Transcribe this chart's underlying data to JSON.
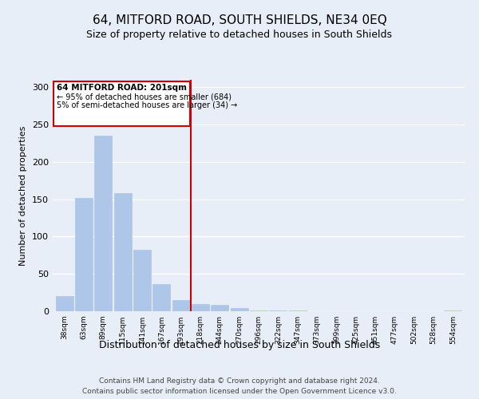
{
  "title": "64, MITFORD ROAD, SOUTH SHIELDS, NE34 0EQ",
  "subtitle": "Size of property relative to detached houses in South Shields",
  "xlabel": "Distribution of detached houses by size in South Shields",
  "ylabel": "Number of detached properties",
  "bar_labels": [
    "38sqm",
    "63sqm",
    "89sqm",
    "115sqm",
    "141sqm",
    "167sqm",
    "193sqm",
    "218sqm",
    "244sqm",
    "270sqm",
    "296sqm",
    "322sqm",
    "347sqm",
    "373sqm",
    "399sqm",
    "425sqm",
    "451sqm",
    "477sqm",
    "502sqm",
    "528sqm",
    "554sqm"
  ],
  "bar_values": [
    20,
    152,
    235,
    158,
    82,
    36,
    15,
    10,
    9,
    4,
    1,
    1,
    1,
    0,
    0,
    0,
    0,
    0,
    0,
    0,
    1
  ],
  "bar_color": "#aec6e8",
  "bar_edge_color": "#aec6e8",
  "ylim": [
    0,
    310
  ],
  "yticks": [
    0,
    50,
    100,
    150,
    200,
    250,
    300
  ],
  "vline_x": 6.5,
  "vline_color": "#cc0000",
  "annotation_title": "64 MITFORD ROAD: 201sqm",
  "annotation_line1": "← 95% of detached houses are smaller (684)",
  "annotation_line2": "5% of semi-detached houses are larger (34) →",
  "annotation_box_color": "#ffffff",
  "annotation_box_edge": "#cc0000",
  "footer_line1": "Contains HM Land Registry data © Crown copyright and database right 2024.",
  "footer_line2": "Contains public sector information licensed under the Open Government Licence v3.0.",
  "background_color": "#e8eef8",
  "grid_color": "#ffffff",
  "title_fontsize": 11,
  "subtitle_fontsize": 9,
  "xlabel_fontsize": 9,
  "ylabel_fontsize": 8,
  "footer_fontsize": 6.5
}
